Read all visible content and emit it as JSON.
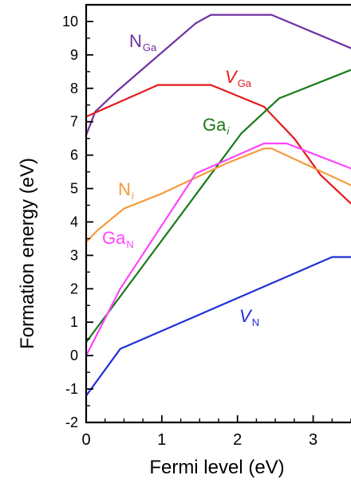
{
  "chart_data": {
    "type": "line",
    "title": "",
    "xlabel": "Fermi level (eV)",
    "ylabel": "Formation energy (eV)",
    "xlim": [
      0,
      3.5
    ],
    "ylim": [
      -2,
      10.5
    ],
    "x_ticks": [
      "0",
      "1",
      "2",
      "3"
    ],
    "y_ticks": [
      "-2",
      "-1",
      "0",
      "1",
      "2",
      "3",
      "4",
      "5",
      "6",
      "7",
      "8",
      "9",
      "10"
    ],
    "series": [
      {
        "name": "N_Ga",
        "label_main": "N",
        "label_sub": "Ga",
        "label_italic": false,
        "color": "#7030a0",
        "points": [
          [
            0,
            6.6
          ],
          [
            0.12,
            7.3
          ],
          [
            0.4,
            7.9
          ],
          [
            1.45,
            9.95
          ],
          [
            1.65,
            10.2
          ],
          [
            2.45,
            10.2
          ],
          [
            3.5,
            9.2
          ]
        ]
      },
      {
        "name": "V_Ga",
        "label_main": "V",
        "label_sub": "Ga",
        "label_italic": true,
        "color": "#e41a1c",
        "points": [
          [
            0,
            7.15
          ],
          [
            0.95,
            8.1
          ],
          [
            1.65,
            8.1
          ],
          [
            2.35,
            7.45
          ],
          [
            2.75,
            6.5
          ],
          [
            3.1,
            5.4
          ],
          [
            3.5,
            4.55
          ]
        ]
      },
      {
        "name": "Ga_i",
        "label_main": "Ga",
        "label_sub": "i",
        "label_italic": false,
        "color": "#1a7a1a",
        "points": [
          [
            0,
            0.4
          ],
          [
            2.05,
            6.65
          ],
          [
            2.55,
            7.7
          ],
          [
            3.5,
            8.55
          ]
        ]
      },
      {
        "name": "N_i",
        "label_main": "N",
        "label_sub": "i",
        "label_italic": false,
        "color": "#f59a3c",
        "points": [
          [
            0,
            3.4
          ],
          [
            0.15,
            3.75
          ],
          [
            0.5,
            4.4
          ],
          [
            1.0,
            4.85
          ],
          [
            1.85,
            5.75
          ],
          [
            2.35,
            6.2
          ],
          [
            2.45,
            6.2
          ],
          [
            3.5,
            5.1
          ]
        ]
      },
      {
        "name": "Ga_N",
        "label_main": "Ga",
        "label_sub": "N",
        "label_italic": false,
        "color": "#ff44ff",
        "points": [
          [
            0,
            0.0
          ],
          [
            0.45,
            2.0
          ],
          [
            1.45,
            5.45
          ],
          [
            2.35,
            6.35
          ],
          [
            2.65,
            6.35
          ],
          [
            3.5,
            5.6
          ]
        ]
      },
      {
        "name": "V_N",
        "label_main": "V",
        "label_sub": "N",
        "label_italic": true,
        "color": "#1f2fd6",
        "points": [
          [
            0,
            -1.2
          ],
          [
            0.45,
            0.2
          ],
          [
            3.25,
            2.95
          ],
          [
            3.5,
            2.95
          ]
        ]
      }
    ]
  }
}
